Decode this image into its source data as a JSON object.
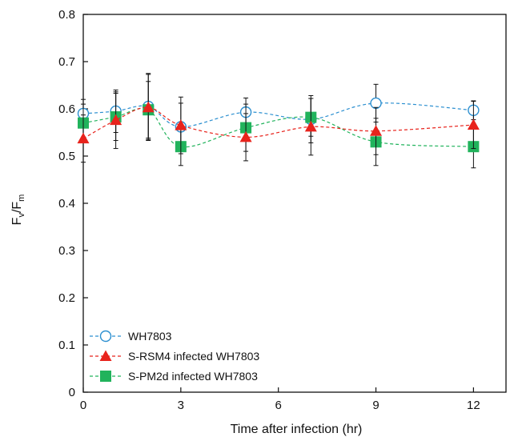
{
  "chart_data": {
    "type": "line",
    "title": "",
    "xlabel": "Time after infection (hr)",
    "ylabel": {
      "main": "F",
      "sub1": "v",
      "slash": "/F",
      "sub2": "m"
    },
    "xlim": [
      0,
      13
    ],
    "ylim": [
      0,
      0.8
    ],
    "xticks": [
      0,
      3,
      6,
      9,
      12
    ],
    "yticks": [
      0,
      0.1,
      0.2,
      0.3,
      0.4,
      0.5,
      0.6,
      0.7,
      0.8
    ],
    "grid": false,
    "legend_position": "bottom-left",
    "x": [
      0,
      1,
      2,
      3,
      5,
      7,
      9,
      12
    ],
    "series": [
      {
        "name": "WH7803",
        "marker": "open-circle",
        "color": "#2b8fd0",
        "values": [
          0.59,
          0.595,
          0.605,
          0.562,
          0.593,
          0.578,
          0.612,
          0.597
        ],
        "errors": [
          0.03,
          0.045,
          0.07,
          0.05,
          0.03,
          0.05,
          0.04,
          0.02
        ]
      },
      {
        "name": "S-RSM4 infected WH7803",
        "marker": "filled-triangle",
        "color": "#e8231c",
        "values": [
          0.537,
          0.576,
          0.603,
          0.565,
          0.54,
          0.562,
          0.553,
          0.566
        ],
        "errors": [
          0.05,
          0.06,
          0.07,
          0.06,
          0.05,
          0.06,
          0.05,
          0.05
        ]
      },
      {
        "name": "S-PM2d infected WH7803",
        "marker": "filled-square",
        "color": "#21b35c",
        "values": [
          0.57,
          0.583,
          0.598,
          0.52,
          0.56,
          0.582,
          0.53,
          0.52
        ],
        "errors": [
          0.04,
          0.05,
          0.06,
          0.04,
          0.05,
          0.04,
          0.05,
          0.045
        ]
      }
    ]
  }
}
